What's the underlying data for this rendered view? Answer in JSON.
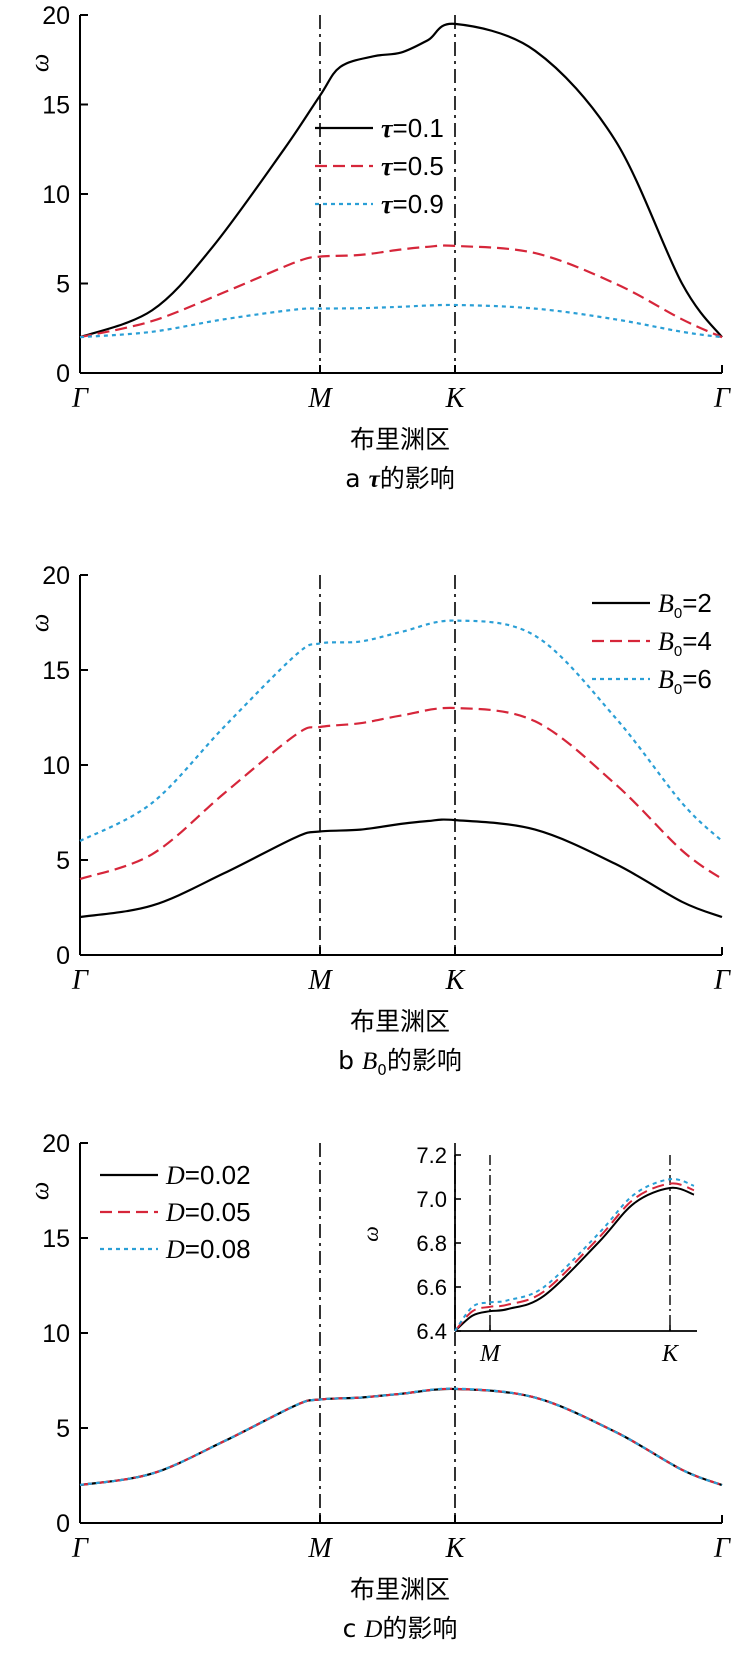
{
  "colors": {
    "black": "#000000",
    "red": "#d6263a",
    "cyan": "#2a9fd6"
  },
  "chart_data": [
    {
      "type": "line",
      "title": "a τ的影响",
      "caption_letter": "a",
      "caption_sym": "τ",
      "caption_text": "的影响",
      "xlabel": "布里渊区",
      "ylabel": "ω",
      "x_ticks": [
        "Γ",
        "M",
        "K",
        "Γ"
      ],
      "y_ticks": [
        "0",
        "5",
        "10",
        "15",
        "20"
      ],
      "ylim": [
        0,
        20
      ],
      "grid": false,
      "legend_position": "top-center",
      "series": [
        {
          "name": "τ=0.1",
          "sym": "τ",
          "eq": "=0.1",
          "style": "solid",
          "color": "#000000",
          "x": [
            0,
            0.3,
            0.55,
            0.85,
            1.0,
            1.15,
            1.4,
            1.6,
            1.8,
            2.0,
            2.3,
            2.6,
            2.85,
            3.0
          ],
          "y": [
            2.0,
            3.5,
            7.0,
            12.5,
            15.5,
            17.1,
            17.7,
            17.9,
            18.6,
            19.5,
            18.0,
            13.0,
            5.0,
            2.0
          ]
        },
        {
          "name": "τ=0.5",
          "sym": "τ",
          "eq": "=0.5",
          "style": "dashed",
          "color": "#d6263a",
          "x": [
            0,
            0.3,
            0.6,
            0.9,
            1.0,
            1.3,
            1.6,
            1.8,
            2.0,
            2.3,
            2.6,
            2.85,
            3.0
          ],
          "y": [
            2.0,
            2.9,
            4.5,
            6.2,
            6.5,
            6.6,
            6.9,
            7.05,
            7.1,
            6.7,
            5.0,
            3.0,
            2.0
          ]
        },
        {
          "name": "τ=0.9",
          "sym": "τ",
          "eq": "=0.9",
          "style": "dotted",
          "color": "#2a9fd6",
          "x": [
            0,
            0.3,
            0.6,
            0.9,
            1.0,
            1.3,
            1.6,
            2.0,
            2.3,
            2.6,
            2.85,
            3.0
          ],
          "y": [
            2.0,
            2.3,
            3.0,
            3.55,
            3.6,
            3.62,
            3.7,
            3.8,
            3.6,
            3.0,
            2.3,
            2.0
          ]
        }
      ]
    },
    {
      "type": "line",
      "title": "b B0的影响",
      "caption_letter": "b",
      "caption_sym": "B",
      "caption_sub": "0",
      "caption_text": "的影响",
      "xlabel": "布里渊区",
      "ylabel": "ω",
      "x_ticks": [
        "Γ",
        "M",
        "K",
        "Γ"
      ],
      "y_ticks": [
        "0",
        "5",
        "10",
        "15",
        "20"
      ],
      "ylim": [
        0,
        20
      ],
      "grid": false,
      "legend_position": "top-right",
      "series": [
        {
          "name": "B0=2",
          "sym": "B",
          "sub": "0",
          "eq": "=2",
          "style": "solid",
          "color": "#000000",
          "x": [
            0,
            0.3,
            0.6,
            0.9,
            1.0,
            1.3,
            1.6,
            1.8,
            2.0,
            2.3,
            2.6,
            2.85,
            3.0
          ],
          "y": [
            2.0,
            2.6,
            4.3,
            6.2,
            6.5,
            6.6,
            6.9,
            7.05,
            7.1,
            6.6,
            4.8,
            2.8,
            2.0
          ]
        },
        {
          "name": "B0=4",
          "sym": "B",
          "sub": "0",
          "eq": "=4",
          "style": "dashed",
          "color": "#d6263a",
          "x": [
            0,
            0.3,
            0.6,
            0.9,
            1.0,
            1.3,
            1.6,
            2.0,
            2.3,
            2.6,
            2.85,
            3.0
          ],
          "y": [
            4.0,
            5.3,
            8.5,
            11.6,
            12.0,
            12.2,
            12.6,
            13.0,
            12.3,
            9.0,
            5.5,
            4.0
          ]
        },
        {
          "name": "B0=6",
          "sym": "B",
          "sub": "0",
          "eq": "=6",
          "style": "dotted",
          "color": "#2a9fd6",
          "x": [
            0,
            0.3,
            0.6,
            0.9,
            1.0,
            1.3,
            1.6,
            2.0,
            2.3,
            2.6,
            2.85,
            3.0
          ],
          "y": [
            6.0,
            8.0,
            12.0,
            15.8,
            16.4,
            16.5,
            17.0,
            17.6,
            16.8,
            12.5,
            8.0,
            6.0
          ]
        }
      ]
    },
    {
      "type": "line",
      "title": "c D的影响",
      "caption_letter": "c",
      "caption_sym": "D",
      "caption_text": "的影响",
      "xlabel": "布里渊区",
      "ylabel": "ω",
      "x_ticks": [
        "Γ",
        "M",
        "K",
        "Γ"
      ],
      "y_ticks": [
        "0",
        "5",
        "10",
        "15",
        "20"
      ],
      "ylim": [
        0,
        20
      ],
      "grid": false,
      "legend_position": "top-left",
      "series": [
        {
          "name": "D=0.02",
          "sym": "D",
          "eq": "=0.02",
          "style": "solid",
          "color": "#000000",
          "x": [
            0,
            0.3,
            0.6,
            0.9,
            1.0,
            1.3,
            1.6,
            2.0,
            2.3,
            2.6,
            2.85,
            3.0
          ],
          "y": [
            2.0,
            2.6,
            4.3,
            6.2,
            6.5,
            6.6,
            6.8,
            7.05,
            6.6,
            4.8,
            2.8,
            2.0
          ]
        },
        {
          "name": "D=0.05",
          "sym": "D",
          "eq": "=0.05",
          "style": "dashed",
          "color": "#d6263a",
          "x": [
            0,
            0.3,
            0.6,
            0.9,
            1.0,
            1.3,
            1.6,
            2.0,
            2.3,
            2.6,
            2.85,
            3.0
          ],
          "y": [
            2.0,
            2.6,
            4.3,
            6.2,
            6.5,
            6.6,
            6.8,
            7.06,
            6.6,
            4.8,
            2.8,
            2.0
          ]
        },
        {
          "name": "D=0.08",
          "sym": "D",
          "eq": "=0.08",
          "style": "dotted",
          "color": "#2a9fd6",
          "x": [
            0,
            0.3,
            0.6,
            0.9,
            1.0,
            1.3,
            1.6,
            2.0,
            2.3,
            2.6,
            2.85,
            3.0
          ],
          "y": [
            2.0,
            2.6,
            4.3,
            6.2,
            6.5,
            6.6,
            6.8,
            7.07,
            6.6,
            4.8,
            2.8,
            2.0
          ]
        }
      ],
      "inset": {
        "ylabel": "ω",
        "x_ticks": [
          "M",
          "K"
        ],
        "y_ticks": [
          "6.4",
          "6.6",
          "6.8",
          "7.0",
          "7.2"
        ],
        "ylim": [
          6.4,
          7.2
        ],
        "series": [
          {
            "name": "D=0.02",
            "style": "solid",
            "color": "#000000",
            "x": [
              0.8,
              0.9,
              1.0,
              1.1,
              1.3,
              1.6,
              1.8,
              2.0,
              2.1
            ],
            "y": [
              6.4,
              6.47,
              6.49,
              6.5,
              6.56,
              6.8,
              6.98,
              7.05,
              7.02
            ]
          },
          {
            "name": "D=0.05",
            "style": "dashed",
            "color": "#d6263a",
            "x": [
              0.8,
              0.9,
              1.0,
              1.1,
              1.3,
              1.6,
              1.8,
              2.0,
              2.1
            ],
            "y": [
              6.4,
              6.49,
              6.51,
              6.52,
              6.58,
              6.82,
              7.0,
              7.07,
              7.04
            ]
          },
          {
            "name": "D=0.08",
            "style": "dotted",
            "color": "#2a9fd6",
            "x": [
              0.8,
              0.9,
              1.0,
              1.1,
              1.3,
              1.6,
              1.8,
              2.0,
              2.1
            ],
            "y": [
              6.4,
              6.51,
              6.53,
              6.54,
              6.6,
              6.84,
              7.02,
              7.09,
              7.06
            ]
          }
        ]
      }
    }
  ]
}
